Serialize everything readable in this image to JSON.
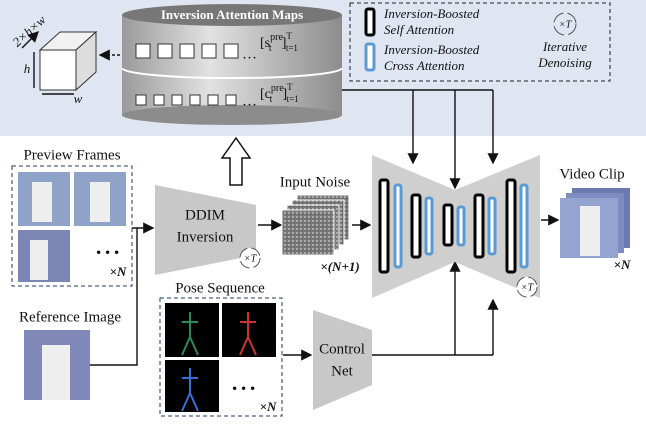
{
  "maps": {
    "title": "Inversion Attention Maps",
    "self_label": {
      "open": "[s",
      "sub": "t",
      "sup": "pre",
      "close": "]",
      "lower": "t=1",
      "upper": "T"
    },
    "cross_label": {
      "open": "[c",
      "sub": "t",
      "sup": "pre",
      "close": "]",
      "lower": "t=1",
      "upper": "T"
    }
  },
  "cube": {
    "depth": "2×h×w",
    "height": "h",
    "width": "w"
  },
  "legend": {
    "self": [
      "Inversion-Boosted",
      "Self Attention"
    ],
    "cross": [
      "Inversion-Boosted",
      "Cross Attention"
    ],
    "repeat": "×T",
    "denoise": [
      "Iterative",
      "Denoising"
    ]
  },
  "preview": {
    "label": "Preview Frames",
    "count": "×N"
  },
  "reference": {
    "label": "Reference Image"
  },
  "ddim": {
    "lines": [
      "DDIM",
      "Inversion"
    ],
    "repeat": "×T"
  },
  "noise": {
    "label": "Input Noise",
    "count": "×(N+1)"
  },
  "unet": {
    "repeat": "×T"
  },
  "video": {
    "label": "Video Clip",
    "count": "×N"
  },
  "pose": {
    "label": "Pose  Sequence",
    "count": "×N"
  },
  "controlnet": {
    "lines": [
      "Control",
      "Net"
    ]
  }
}
